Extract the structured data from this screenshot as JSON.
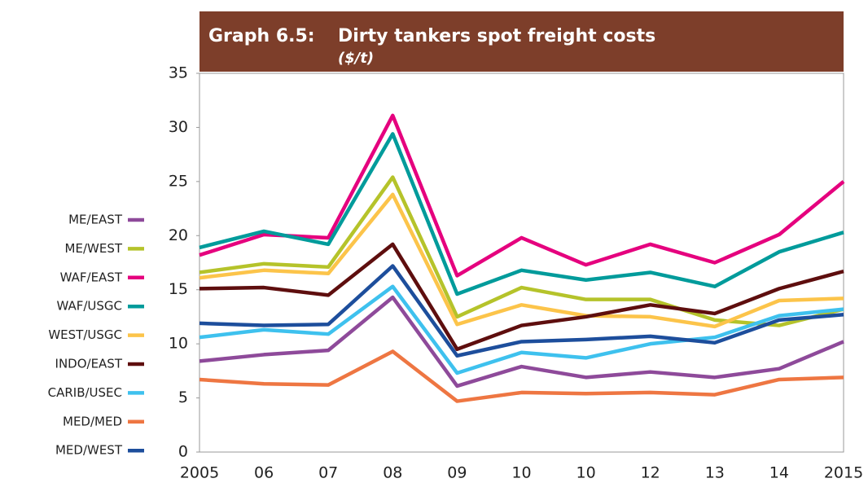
{
  "chart_data": {
    "type": "line",
    "label": "Graph 6.5:",
    "title": "Dirty tankers spot freight costs",
    "subtitle": "($/t)",
    "categories": [
      "2005",
      "06",
      "07",
      "08",
      "09",
      "10",
      "10",
      "12",
      "13",
      "14",
      "2015"
    ],
    "ylim": [
      0,
      35
    ],
    "yticks": [
      0,
      5,
      10,
      15,
      20,
      25,
      30,
      35
    ],
    "grid": false,
    "legend": "left",
    "series": [
      {
        "name": "ME/EAST",
        "color": "#8e4a9a",
        "values": [
          8.4,
          9.0,
          9.4,
          14.3,
          6.1,
          7.9,
          6.9,
          7.4,
          6.9,
          7.7,
          10.2
        ]
      },
      {
        "name": "ME/WEST",
        "color": "#b5c32a",
        "values": [
          16.6,
          17.4,
          17.1,
          25.4,
          12.5,
          15.2,
          14.1,
          14.1,
          12.2,
          11.7,
          13.2
        ]
      },
      {
        "name": "WAF/EAST",
        "color": "#e5007e",
        "values": [
          18.2,
          20.1,
          19.8,
          31.1,
          16.3,
          19.8,
          17.3,
          19.2,
          17.5,
          20.1,
          25.0
        ]
      },
      {
        "name": "WAF/USGC",
        "color": "#009b9b",
        "values": [
          18.9,
          20.4,
          19.2,
          29.4,
          14.6,
          16.8,
          15.9,
          16.6,
          15.3,
          18.5,
          20.3
        ]
      },
      {
        "name": "WEST/USGC",
        "color": "#fcc44a",
        "values": [
          16.1,
          16.8,
          16.5,
          23.8,
          11.8,
          13.6,
          12.6,
          12.5,
          11.6,
          14.0,
          14.2
        ]
      },
      {
        "name": "INDO/EAST",
        "color": "#5e0e0e",
        "values": [
          15.1,
          15.2,
          14.5,
          19.2,
          9.5,
          11.7,
          12.5,
          13.6,
          12.8,
          15.1,
          16.7
        ]
      },
      {
        "name": "CARIB/USEC",
        "color": "#3ec1ee",
        "values": [
          10.6,
          11.3,
          10.9,
          15.3,
          7.3,
          9.2,
          8.7,
          10.0,
          10.6,
          12.6,
          13.2
        ]
      },
      {
        "name": "MED/MED",
        "color": "#ee7642",
        "values": [
          6.7,
          6.3,
          6.2,
          9.3,
          4.7,
          5.5,
          5.4,
          5.5,
          5.3,
          6.7,
          6.9
        ]
      },
      {
        "name": "MED/WEST",
        "color": "#1d4e9c",
        "values": [
          11.9,
          11.7,
          11.8,
          17.2,
          8.9,
          10.2,
          10.4,
          10.7,
          10.1,
          12.2,
          12.7
        ]
      }
    ]
  }
}
